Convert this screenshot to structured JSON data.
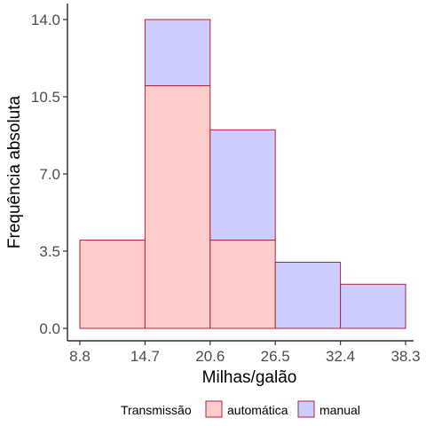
{
  "chart_data": {
    "type": "bar",
    "subtype": "stacked-histogram",
    "title": "",
    "xlabel": "Milhas/galão",
    "ylabel": "Frequência absoluta",
    "x_tick_labels": [
      "8.8",
      "14.7",
      "20.6",
      "26.5",
      "32.4",
      "38.3"
    ],
    "x_ticks": [
      8.8,
      14.7,
      20.6,
      26.5,
      32.4,
      38.3
    ],
    "y_tick_labels": [
      "0.0",
      "3.5",
      "7.0",
      "10.5",
      "14.0"
    ],
    "y_ticks": [
      0,
      3.5,
      7,
      10.5,
      14
    ],
    "xlim": [
      8.8,
      38.3
    ],
    "ylim": [
      0,
      14
    ],
    "bins": [
      [
        8.8,
        14.7
      ],
      [
        14.7,
        20.6
      ],
      [
        20.6,
        26.5
      ],
      [
        26.5,
        32.4
      ],
      [
        32.4,
        38.3
      ]
    ],
    "series": [
      {
        "name": "automática",
        "values": [
          4,
          11,
          4,
          0,
          0
        ],
        "fill": "#ffcccc",
        "stroke": "#b22234"
      },
      {
        "name": "manual",
        "values": [
          0,
          3,
          5,
          3,
          2
        ],
        "fill": "#ccccff",
        "stroke": "#b22234"
      }
    ],
    "legend": {
      "title": "Transmissão",
      "position": "bottom"
    },
    "grid": false
  }
}
